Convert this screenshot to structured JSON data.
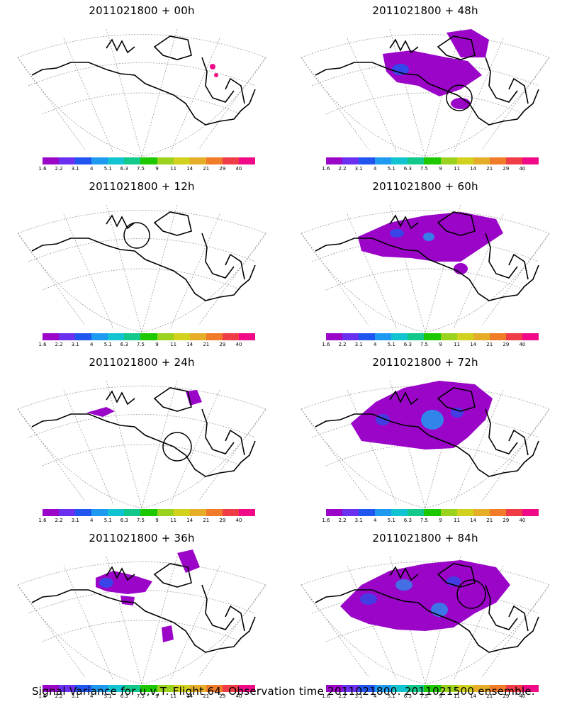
{
  "panels": [
    {
      "title": "2011021800 + 00h"
    },
    {
      "title": "2011021800 + 48h"
    },
    {
      "title": "2011021800 + 12h"
    },
    {
      "title": "2011021800 + 60h"
    },
    {
      "title": "2011021800 + 24h"
    },
    {
      "title": "2011021800 + 72h"
    },
    {
      "title": "2011021800 + 36h"
    },
    {
      "title": "2011021800 + 84h"
    }
  ],
  "colorbar": {
    "colors": [
      "#9a05c8",
      "#6b2ff0",
      "#2155f0",
      "#1e9bf0",
      "#12c3d2",
      "#12c88a",
      "#1ec800",
      "#9ad21e",
      "#d2d21e",
      "#e6ae28",
      "#f07b28",
      "#f03c46",
      "#f00a87"
    ],
    "labels": [
      "1.6",
      "2.2",
      "3.1",
      "4",
      "5.1",
      "6.3",
      "7.5",
      "9",
      "11",
      "14",
      "21",
      "29",
      "40"
    ]
  },
  "footer": "Signal Variance for u,v,T. Flight 64. Observation time 2011021800. 2011021500 ensemble."
}
